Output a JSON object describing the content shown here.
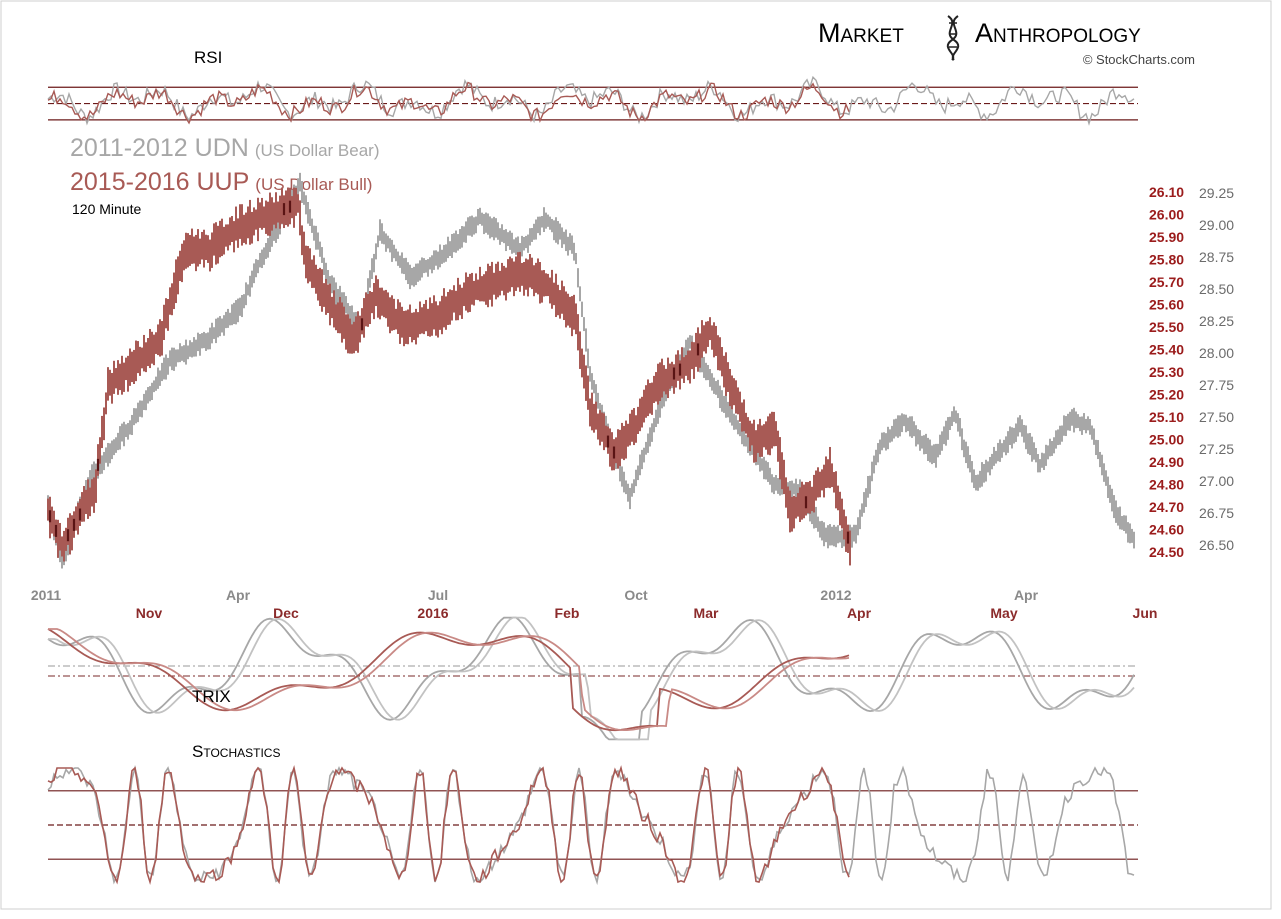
{
  "brand": {
    "name_left": "Market",
    "name_right": "Anthropology",
    "credit": "© StockCharts.com",
    "logo_icon": "dna-helix-icon"
  },
  "colors": {
    "gray_series": "#a7a7a7",
    "red_series": "#a85a55",
    "dark_red": "#5a1414",
    "right_axis_red": "#9b1c1c",
    "right_axis_gray": "#6b6b6b",
    "x_gray": "#8a8a8a",
    "x_red": "#8b2b2b",
    "guide_line": "#6b1a1a"
  },
  "chart_data": {
    "type": "line",
    "panels": {
      "rsi": {
        "label": "RSI",
        "upper": 70,
        "mid": 50,
        "lower": 30
      },
      "price": {
        "series": [
          {
            "name": "2011-2012 UDN",
            "note": "(US Dollar Bear)",
            "color": "#a7a7a7",
            "axis": "right-gray"
          },
          {
            "name": "2015-2016 UUP",
            "note": "(US Dollar Bull)",
            "color": "#a85a55",
            "axis": "right-red"
          }
        ],
        "timeframe": "120 Minute",
        "right_axis_red": {
          "ticks": [
            "26.10",
            "26.00",
            "25.90",
            "25.80",
            "25.70",
            "25.60",
            "25.50",
            "25.40",
            "25.30",
            "25.20",
            "25.10",
            "25.00",
            "24.90",
            "24.80",
            "24.70",
            "24.60",
            "24.50"
          ],
          "range": [
            24.5,
            26.1
          ]
        },
        "right_axis_gray": {
          "ticks": [
            "29.25",
            "29.00",
            "28.75",
            "28.50",
            "28.25",
            "28.00",
            "27.75",
            "27.50",
            "27.25",
            "27.00",
            "26.75",
            "26.50"
          ],
          "range": [
            26.5,
            29.25
          ]
        },
        "x_labels_gray": [
          "2011",
          "Apr",
          "Jul",
          "Oct",
          "2012",
          "Apr"
        ],
        "x_labels_red": [
          "Nov",
          "Dec",
          "2016",
          "Feb",
          "Mar",
          "Apr",
          "May",
          "Jun"
        ]
      },
      "trix": {
        "label": "TRIX"
      },
      "stochastics": {
        "label": "Stochastics",
        "upper": 80,
        "mid": 50,
        "lower": 20
      }
    }
  }
}
